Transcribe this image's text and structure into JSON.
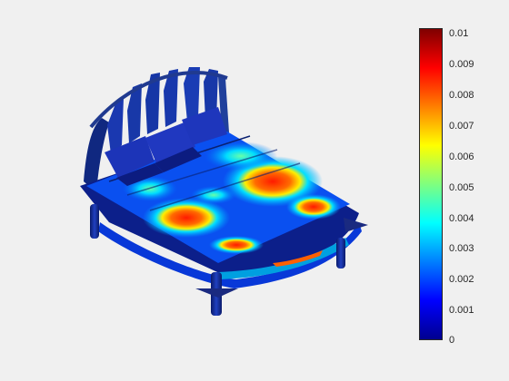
{
  "colorbar": {
    "colormap": "jet",
    "range": [
      0,
      0.01
    ],
    "tick_labels": [
      "0.01",
      "0.009",
      "0.008",
      "0.007",
      "0.006",
      "0.005",
      "0.004",
      "0.003",
      "0.002",
      "0.001",
      "0"
    ],
    "stops": [
      "#00008f",
      "#0000ff",
      "#007fff",
      "#00ffff",
      "#7fff7f",
      "#ffff00",
      "#ff7f00",
      "#ff0000",
      "#7f0000"
    ]
  },
  "scene": {
    "object": "bed-model",
    "background_color": "#f0f0f0",
    "surface_base_color": "#1030c8",
    "hotspot_color": "#ff2a00"
  }
}
